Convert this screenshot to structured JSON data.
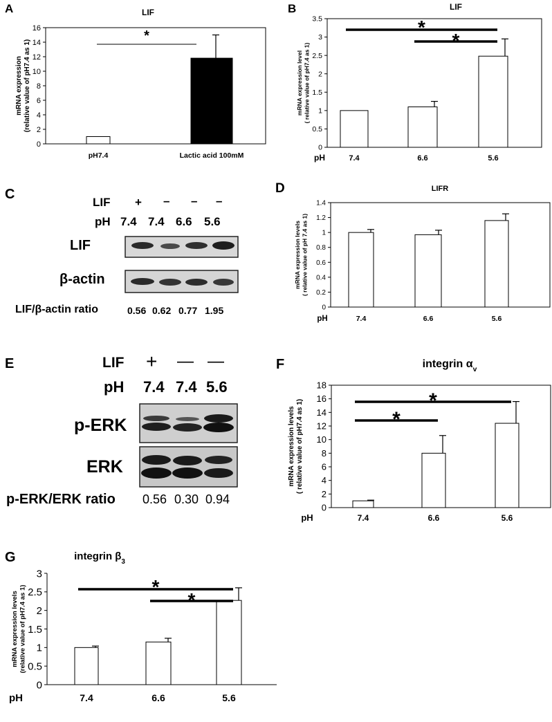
{
  "panel_letters": {
    "A": "A",
    "B": "B",
    "C": "C",
    "D": "D",
    "E": "E",
    "F": "F",
    "G": "G"
  },
  "chart_data": [
    {
      "panel": "A",
      "type": "bar",
      "title": "LIF",
      "ylabel_line1": "mRNA expression",
      "ylabel_line2": "(relative value of pH7.4 as 1)",
      "xlabel": "",
      "categories": [
        "pH7.4",
        "Lactic acid 100mM"
      ],
      "values": [
        1,
        11.8
      ],
      "errors": [
        0,
        3.2
      ],
      "bar_colors": [
        "#ffffff",
        "#000000"
      ],
      "ylim": [
        0,
        16
      ],
      "yticks": [
        "0",
        "2",
        "4",
        "6",
        "8",
        "10",
        "12",
        "14",
        "16"
      ],
      "significance": [
        {
          "from": 0,
          "to": 1,
          "symbol": "*"
        }
      ]
    },
    {
      "panel": "B",
      "type": "bar",
      "title": "LIF",
      "ylabel_line1": "mRNA expression level",
      "ylabel_line2": "( relative value of pH7.4 as 1)",
      "xlabel": "pH",
      "categories": [
        "7.4",
        "6.6",
        "5.6"
      ],
      "values": [
        1,
        1.1,
        2.48
      ],
      "errors": [
        0,
        0.15,
        0.47
      ],
      "ylim": [
        0,
        3.5
      ],
      "yticks": [
        "0",
        "0.5",
        "1",
        "1.5",
        "2",
        "2.5",
        "3",
        "3.5"
      ],
      "significance": [
        {
          "from": 0,
          "to": 2,
          "symbol": "*"
        },
        {
          "from": 1,
          "to": 2,
          "symbol": "*"
        }
      ]
    },
    {
      "panel": "D",
      "type": "bar",
      "title": "LIFR",
      "ylabel_line1": "mRNA expression levels",
      "ylabel_line2": "( relative value of  pH 7.4 as 1)",
      "xlabel": "pH",
      "categories": [
        "7.4",
        "6.6",
        "5.6"
      ],
      "values": [
        1.0,
        0.97,
        1.16
      ],
      "errors": [
        0.04,
        0.06,
        0.09
      ],
      "ylim": [
        0,
        1.4
      ],
      "yticks": [
        "0",
        "0.2",
        "0.4",
        "0.6",
        "0.8",
        "1",
        "1.2",
        "1.4"
      ],
      "significance": []
    },
    {
      "panel": "F",
      "type": "bar",
      "title": "integrin α",
      "title_sub": "v",
      "ylabel_line1": "mRNA expression levels",
      "ylabel_line2": "( relative value of pH7.4 as 1)",
      "xlabel": "pH",
      "categories": [
        "7.4",
        "6.6",
        "5.6"
      ],
      "values": [
        1,
        8,
        12.4
      ],
      "errors": [
        0.1,
        2.6,
        3.2
      ],
      "ylim": [
        0,
        18
      ],
      "yticks": [
        "0",
        "2",
        "4",
        "6",
        "8",
        "10",
        "12",
        "14",
        "16",
        "18"
      ],
      "significance": [
        {
          "from": 0,
          "to": 2,
          "symbol": "*"
        },
        {
          "from": 0,
          "to": 1,
          "symbol": "*"
        }
      ]
    },
    {
      "panel": "G",
      "type": "bar",
      "title": "integrin β",
      "title_sub": "3",
      "ylabel_line1": "mRNA expression levels",
      "ylabel_line2": "(relative value of pH7.4 as 1)",
      "xlabel": "pH",
      "categories": [
        "7.4",
        "6.6",
        "5.6"
      ],
      "values": [
        1,
        1.15,
        2.27
      ],
      "errors": [
        0.04,
        0.1,
        0.34
      ],
      "ylim": [
        0,
        3
      ],
      "yticks": [
        "0",
        "0.5",
        "1",
        "1.5",
        "2",
        "2.5",
        "3"
      ],
      "significance": [
        {
          "from": 0,
          "to": 2,
          "symbol": "*"
        },
        {
          "from": 1,
          "to": 2,
          "symbol": "*"
        }
      ]
    }
  ],
  "blot_C": {
    "lif_label": "LIF",
    "lif_values": [
      "+",
      "–",
      "–",
      "–"
    ],
    "ph_label": "pH",
    "ph_values": [
      "7.4",
      "7.4",
      "6.6",
      "5.6"
    ],
    "row1_label": "LIF",
    "row2_label": "β-actin",
    "ratio_label": "LIF/β-actin ratio",
    "ratio_values": [
      "0.56",
      "0.62",
      "0.77",
      "1.95"
    ]
  },
  "blot_E": {
    "lif_label": "LIF",
    "lif_values": [
      "+",
      "—",
      "—"
    ],
    "ph_label": "pH",
    "ph_values": [
      "7.4",
      "7.4",
      "5.6"
    ],
    "row1_label": "p-ERK",
    "row2_label": "ERK",
    "ratio_label": "p-ERK/ERK ratio",
    "ratio_values": [
      "0.56",
      "0.30",
      "0.94"
    ]
  }
}
